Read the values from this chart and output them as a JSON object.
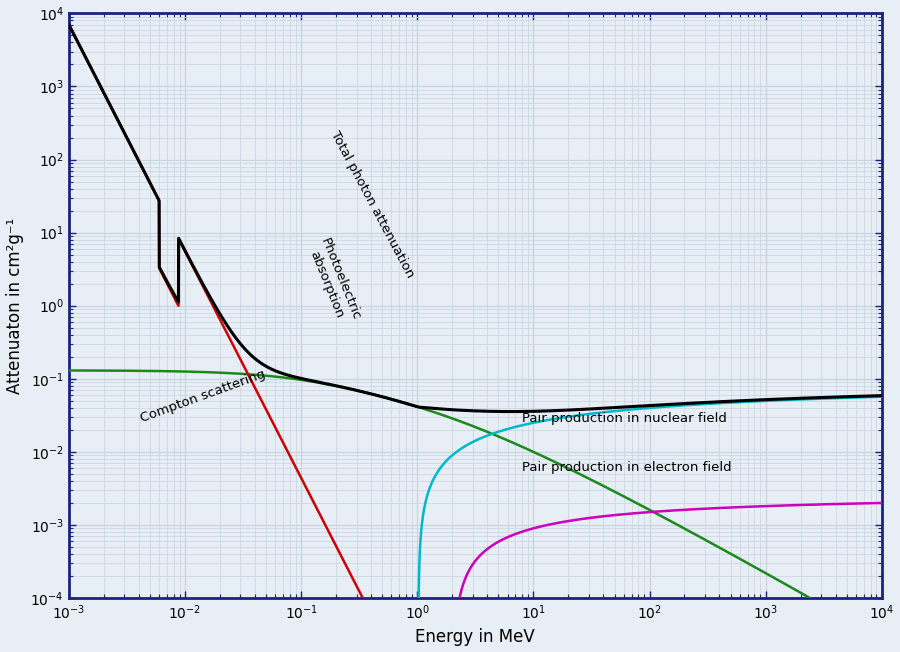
{
  "xlabel": "Energy in MeV",
  "ylabel": "Attenuaton in cm²g⁻¹",
  "xlim": [
    0.001,
    10000.0
  ],
  "ylim": [
    0.0001,
    10000.0
  ],
  "background_color": "#e8eef5",
  "grid_color": "#c8d4e0",
  "border_color": "#1a237e",
  "total_color": "#000000",
  "compton_color": "#1a8a1a",
  "photo_color": "#cc0000",
  "pair_nuc_color": "#00b8cc",
  "pair_el_color": "#cc00bb",
  "linewidth": 1.8,
  "total_linewidth": 2.2,
  "annotation_fontsize": 9.5
}
